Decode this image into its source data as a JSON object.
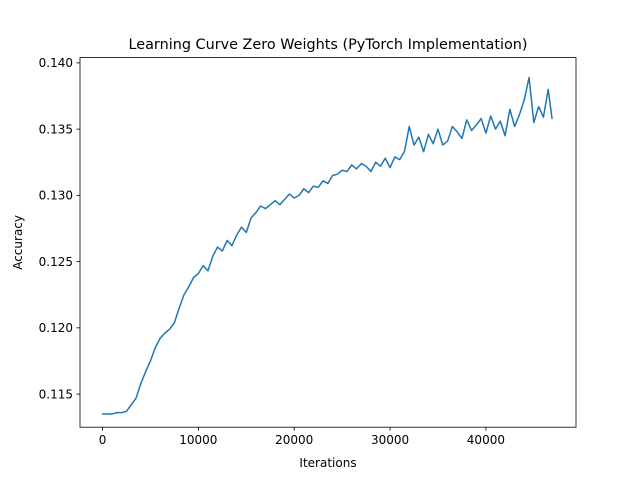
{
  "chart_data": {
    "type": "line",
    "title": "Learning Curve Zero Weights (PyTorch Implementation)",
    "xlabel": "Iterations",
    "ylabel": "Accuracy",
    "xlim": [
      -2350,
      49400
    ],
    "ylim": [
      0.1125,
      0.1404
    ],
    "xticks": [
      0,
      10000,
      20000,
      30000,
      40000
    ],
    "xtick_labels": [
      "0",
      "10000",
      "20000",
      "30000",
      "40000"
    ],
    "yticks": [
      0.115,
      0.12,
      0.125,
      0.13,
      0.135,
      0.14
    ],
    "ytick_labels": [
      "0.115",
      "0.120",
      "0.125",
      "0.130",
      "0.135",
      "0.140"
    ],
    "grid": false,
    "series": [
      {
        "color": "#1f77b4",
        "x": [
          0,
          500,
          1000,
          1500,
          2000,
          2500,
          3000,
          3500,
          4000,
          4500,
          5000,
          5500,
          6000,
          6500,
          7000,
          7500,
          8000,
          8500,
          9000,
          9500,
          10000,
          10500,
          11000,
          11500,
          12000,
          12500,
          13000,
          13500,
          14000,
          14500,
          15000,
          15500,
          16000,
          16500,
          17000,
          17500,
          18000,
          18500,
          19000,
          19500,
          20000,
          20500,
          21000,
          21500,
          22000,
          22500,
          23000,
          23500,
          24000,
          24500,
          25000,
          25500,
          26000,
          26500,
          27000,
          27500,
          28000,
          28500,
          29000,
          29500,
          30000,
          30500,
          31000,
          31500,
          32000,
          32500,
          33000,
          33500,
          34000,
          34500,
          35000,
          35500,
          36000,
          36500,
          37000,
          37500,
          38000,
          38500,
          39000,
          39500,
          40000,
          40500,
          41000,
          41500,
          42000,
          42500,
          43000,
          43500,
          44000,
          44500,
          45000,
          45500,
          46000,
          46500,
          46900
        ],
        "y": [
          0.1135,
          0.1135,
          0.1135,
          0.1136,
          0.1136,
          0.1137,
          0.1142,
          0.1147,
          0.1158,
          0.1167,
          0.1175,
          0.1185,
          0.1192,
          0.1196,
          0.1199,
          0.1204,
          0.1215,
          0.1225,
          0.1231,
          0.1238,
          0.1241,
          0.1247,
          0.1243,
          0.1254,
          0.1261,
          0.1258,
          0.1266,
          0.1262,
          0.127,
          0.1276,
          0.1272,
          0.1283,
          0.1287,
          0.1292,
          0.129,
          0.1293,
          0.1296,
          0.1293,
          0.1297,
          0.1301,
          0.1298,
          0.13,
          0.1305,
          0.1302,
          0.1307,
          0.1306,
          0.1311,
          0.1309,
          0.1315,
          0.1316,
          0.1319,
          0.1318,
          0.1323,
          0.132,
          0.1324,
          0.1322,
          0.1318,
          0.1325,
          0.1322,
          0.1328,
          0.1321,
          0.1329,
          0.1327,
          0.1333,
          0.1352,
          0.1338,
          0.1344,
          0.1333,
          0.1346,
          0.1339,
          0.135,
          0.1338,
          0.1341,
          0.1352,
          0.1348,
          0.1343,
          0.1357,
          0.1349,
          0.1353,
          0.1358,
          0.1347,
          0.136,
          0.135,
          0.1356,
          0.1345,
          0.1365,
          0.1352,
          0.1361,
          0.1372,
          0.1389,
          0.1355,
          0.1367,
          0.1359,
          0.138,
          0.1358
        ]
      }
    ]
  }
}
